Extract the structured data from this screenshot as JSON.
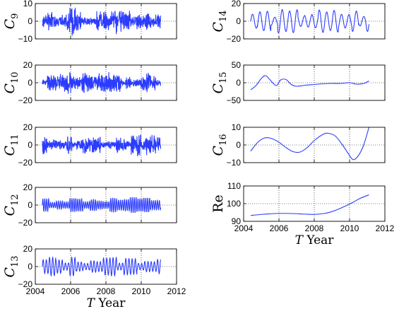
{
  "chart_data": [
    {
      "type": "line",
      "ylabel": "C",
      "ylabel_sub": "9",
      "ylim": [
        -10,
        10
      ],
      "yticks": [
        "10",
        "0",
        "−10"
      ],
      "xlim": [
        2004,
        2012
      ],
      "xticks": [],
      "grid": true,
      "xlabel": "",
      "generator": {
        "kind": "noise",
        "amp": 5,
        "seed": 9
      },
      "color": "#2b3cff"
    },
    {
      "type": "line",
      "ylabel": "C",
      "ylabel_sub": "10",
      "ylim": [
        -20,
        20
      ],
      "yticks": [
        "20",
        "0",
        "−20"
      ],
      "xlim": [
        2004,
        2012
      ],
      "xticks": [],
      "grid": true,
      "xlabel": "",
      "generator": {
        "kind": "noise",
        "amp": 8,
        "seed": 10
      },
      "color": "#2b3cff"
    },
    {
      "type": "line",
      "ylabel": "C",
      "ylabel_sub": "11",
      "ylim": [
        -20,
        20
      ],
      "yticks": [
        "20",
        "0",
        "−20"
      ],
      "xlim": [
        2004,
        2012
      ],
      "xticks": [],
      "grid": true,
      "xlabel": "",
      "generator": {
        "kind": "noise",
        "amp": 8,
        "seed": 11
      },
      "color": "#2b3cff"
    },
    {
      "type": "line",
      "ylabel": "C",
      "ylabel_sub": "12",
      "ylim": [
        -20,
        20
      ],
      "yticks": [
        "20",
        "0",
        "−20"
      ],
      "xlim": [
        2004,
        2012
      ],
      "xticks": [],
      "grid": true,
      "xlabel": "",
      "generator": {
        "kind": "osc",
        "period": 0.11,
        "amp": 7,
        "seed": 12
      },
      "color": "#2b3cff"
    },
    {
      "type": "line",
      "ylabel": "C",
      "ylabel_sub": "13",
      "ylim": [
        -20,
        20
      ],
      "yticks": [
        "20",
        "0",
        "−20"
      ],
      "xlim": [
        2004,
        2012
      ],
      "xticks": [
        "2004",
        "2006",
        "2008",
        "2010",
        "2012"
      ],
      "grid": true,
      "xlabel": "T Year",
      "generator": {
        "kind": "osc",
        "period": 0.18,
        "amp": 9,
        "seed": 13
      },
      "color": "#2b3cff"
    },
    {
      "type": "line",
      "ylabel": "C",
      "ylabel_sub": "14",
      "ylim": [
        -20,
        20
      ],
      "yticks": [
        "20",
        "0",
        "−20"
      ],
      "xlim": [
        2004,
        2012
      ],
      "xticks": [],
      "grid": true,
      "xlabel": "",
      "generator": {
        "kind": "osc",
        "period": 0.42,
        "amp": 11,
        "seed": 14
      },
      "color": "#2b3cff"
    },
    {
      "type": "line",
      "ylabel": "C",
      "ylabel_sub": "15",
      "ylim": [
        -50,
        50
      ],
      "yticks": [
        "50",
        "0",
        "−50"
      ],
      "xlim": [
        2004,
        2012
      ],
      "xticks": [],
      "grid": true,
      "xlabel": "",
      "points": {
        "x": [
          2004.4,
          2004.7,
          2005.0,
          2005.25,
          2005.55,
          2005.85,
          2006.1,
          2006.4,
          2006.7,
          2007.0,
          2007.5,
          2008.0,
          2008.5,
          2009.0,
          2009.5,
          2010.0,
          2010.4,
          2010.8,
          2011.1
        ],
        "y": [
          -20,
          -8,
          12,
          20,
          5,
          -8,
          8,
          9,
          -5,
          -10,
          -7,
          -5,
          -3,
          -2,
          -2,
          0,
          -4,
          -2,
          5
        ]
      },
      "color": "#2b3cff"
    },
    {
      "type": "line",
      "ylabel": "C",
      "ylabel_sub": "16",
      "ylim": [
        -10,
        10
      ],
      "yticks": [
        "10",
        "0",
        "−10"
      ],
      "xlim": [
        2004,
        2012
      ],
      "xticks": [],
      "grid": true,
      "xlabel": "",
      "points": {
        "x": [
          2004.4,
          2004.8,
          2005.2,
          2005.6,
          2006.0,
          2006.4,
          2006.8,
          2007.2,
          2007.6,
          2008.0,
          2008.5,
          2008.8,
          2009.2,
          2009.6,
          2009.9,
          2010.2,
          2010.5,
          2010.8,
          2011.1
        ],
        "y": [
          -3.5,
          1.5,
          4,
          3.6,
          1.5,
          -1.5,
          -3.8,
          -4,
          -1.5,
          2.5,
          6,
          6.6,
          5,
          0,
          -4.5,
          -8.3,
          -6,
          0,
          10
        ]
      },
      "color": "#2b3cff"
    },
    {
      "type": "line",
      "ylabel": "Re",
      "ylabel_sub": "",
      "ylim": [
        90,
        110
      ],
      "yticks": [
        "110",
        "100",
        "90"
      ],
      "xlim": [
        2004,
        2012
      ],
      "xticks": [
        "2004",
        "2006",
        "2008",
        "2010",
        "2012"
      ],
      "grid": true,
      "xlabel": "T Year",
      "points": {
        "x": [
          2004.4,
          2005.0,
          2005.6,
          2006.2,
          2006.8,
          2007.4,
          2008.0,
          2008.6,
          2009.0,
          2009.4,
          2009.8,
          2010.2,
          2010.6,
          2011.1
        ],
        "y": [
          93.3,
          93.9,
          94.3,
          94.5,
          94.4,
          94.1,
          93.9,
          94.5,
          95.5,
          97,
          98.8,
          100.8,
          103,
          105
        ]
      },
      "color": "#2b3cff"
    }
  ]
}
